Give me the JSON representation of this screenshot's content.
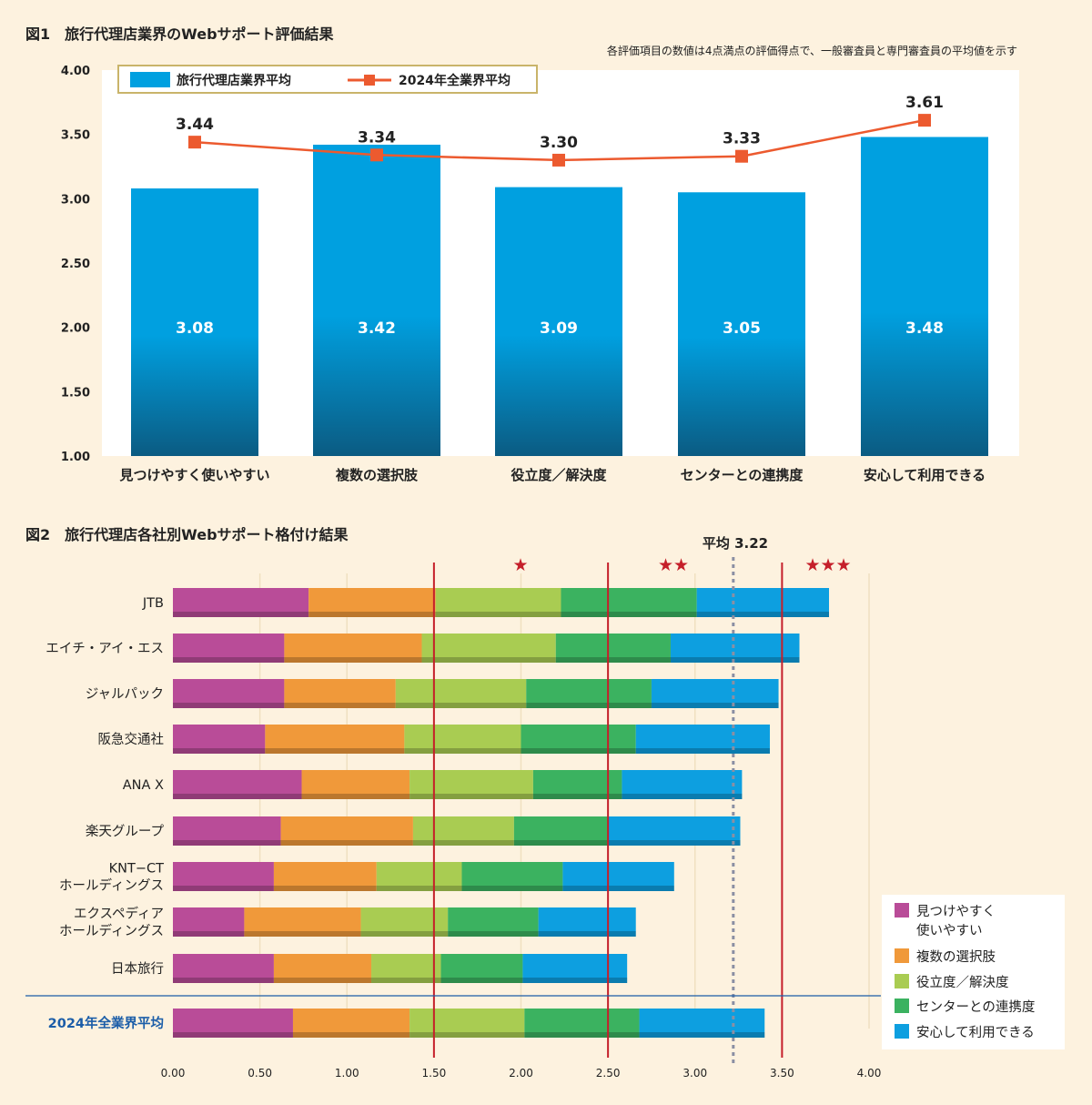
{
  "colors": {
    "background": "#fdf2df",
    "bar_blue": "#00a0e0",
    "line_red": "#ec5a2f",
    "threshold_red": "#c51f2a",
    "average_dotted": "#8a8fa3",
    "plot_bg": "#ffffff",
    "label_blue": "#1b5da8",
    "seg_colors": [
      "#b94c98",
      "#f0993a",
      "#a9cc52",
      "#3bb260",
      "#0d9fe0"
    ]
  },
  "figure1": {
    "title": "図1　旅行代理店業界のWebサポート評価結果",
    "note": "各評価項目の数値は4点満点の評価得点で、一般審査員と専門審査員の平均値を示す",
    "legend": {
      "bar": "旅行代理店業界平均",
      "line": "2024年全業界平均"
    }
  },
  "figure2": {
    "title": "図2　旅行代理店各社別Webサポート格付け結果",
    "average_label": "平均 3.22",
    "stars": [
      "★",
      "★★",
      "★★★"
    ],
    "legend": [
      "見つけやすく\n使いやすい",
      "複数の選択肢",
      "役立度／解決度",
      "センターとの連携度",
      "安心して利用できる"
    ]
  },
  "chart_data": [
    {
      "type": "bar",
      "title": "図1　旅行代理店業界のWebサポート評価結果",
      "categories": [
        "見つけやすく使いやすい",
        "複数の選択肢",
        "役立度／解決度",
        "センターとの連携度",
        "安心して利用できる"
      ],
      "series": [
        {
          "name": "旅行代理店業界平均",
          "type": "bar",
          "values": [
            3.08,
            3.42,
            3.09,
            3.05,
            3.48
          ],
          "labels": [
            "3.08",
            "3.42",
            "3.09",
            "3.05",
            "3.48"
          ]
        },
        {
          "name": "2024年全業界平均",
          "type": "line",
          "values": [
            3.44,
            3.34,
            3.3,
            3.33,
            3.61
          ],
          "labels": [
            "3.44",
            "3.34",
            "3.30",
            "3.33",
            "3.61"
          ]
        }
      ],
      "ylim": [
        1.0,
        4.0
      ],
      "yticks": [
        "1.00",
        "1.50",
        "2.00",
        "2.50",
        "3.00",
        "3.50",
        "4.00"
      ]
    },
    {
      "type": "bar",
      "orientation": "horizontal",
      "stacked": true,
      "title": "図2　旅行代理店各社別Webサポート格付け結果",
      "categories": [
        "JTB",
        "エイチ・アイ・エス",
        "ジャルパック",
        "阪急交通社",
        "ANA X",
        "楽天グループ",
        "KNT−CT\nホールディングス",
        "エクスペディア\nホールディングス",
        "日本旅行",
        "2024年全業界平均"
      ],
      "series": [
        {
          "name": "見つけやすく使いやすい",
          "values": [
            0.78,
            0.64,
            0.64,
            0.53,
            0.74,
            0.62,
            0.58,
            0.41,
            0.58,
            0.69
          ]
        },
        {
          "name": "複数の選択肢",
          "values": [
            0.73,
            0.79,
            0.64,
            0.8,
            0.62,
            0.76,
            0.59,
            0.67,
            0.56,
            0.67
          ]
        },
        {
          "name": "役立度／解決度",
          "values": [
            0.72,
            0.77,
            0.75,
            0.67,
            0.71,
            0.58,
            0.49,
            0.5,
            0.4,
            0.66
          ]
        },
        {
          "name": "センターとの連携度",
          "values": [
            0.78,
            0.66,
            0.72,
            0.66,
            0.51,
            0.54,
            0.58,
            0.52,
            0.47,
            0.66
          ]
        },
        {
          "name": "安心して利用できる",
          "values": [
            0.76,
            0.74,
            0.73,
            0.77,
            0.69,
            0.76,
            0.64,
            0.56,
            0.6,
            0.72
          ]
        }
      ],
      "xlim": [
        0.0,
        4.0
      ],
      "xticks": [
        "0.00",
        "0.50",
        "1.00",
        "1.50",
        "2.00",
        "2.50",
        "3.00",
        "3.50",
        "4.00"
      ],
      "reference_lines": [
        {
          "value": 1.5,
          "label": "★"
        },
        {
          "value": 2.5,
          "label": "★★"
        },
        {
          "value": 3.5,
          "label": "★★★"
        }
      ],
      "average": 3.22
    }
  ]
}
